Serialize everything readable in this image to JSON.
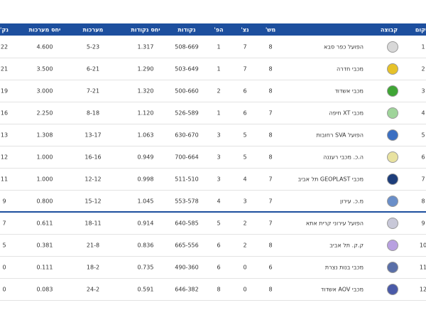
{
  "header": [
    "מיקום",
    "קבוצה",
    "מש'",
    "נצ'",
    "הפ'",
    "נקודות",
    "יחס נקודות",
    "מערכות",
    "יחס מערכות",
    "נק'"
  ],
  "rows": [
    [
      "1",
      "הפועל כפר סבא",
      "8",
      "7",
      "1",
      "508-669",
      "1.317",
      "5-23",
      "4.600",
      "22"
    ],
    [
      "2",
      "מכבי חדרה",
      "8",
      "7",
      "1",
      "503-649",
      "1.290",
      "6-21",
      "3.500",
      "21"
    ],
    [
      "3",
      "מכבי אשדוד",
      "8",
      "6",
      "2",
      "500-660",
      "1.320",
      "7-21",
      "3.000",
      "19"
    ],
    [
      "4",
      "מכבי XT חיפה",
      "7",
      "6",
      "1",
      "526-589",
      "1.120",
      "8-18",
      "2.250",
      "16"
    ],
    [
      "5",
      "הפועל SVA רחובות",
      "8",
      "5",
      "3",
      "630-670",
      "1.063",
      "13-17",
      "1.308",
      "13"
    ],
    [
      "6",
      "ה.כ. מכבי רעננה",
      "8",
      "5",
      "3",
      "700-664",
      "0.949",
      "16-16",
      "1.000",
      "12"
    ],
    [
      "7",
      "מכבי GEOPLAST תל אביב",
      "7",
      "4",
      "3",
      "511-510",
      "0.998",
      "12-12",
      "1.000",
      "11"
    ],
    [
      "8",
      "מ.כ. עירון",
      "7",
      "3",
      "4",
      "553-578",
      "1.045",
      "15-12",
      "0.800",
      "9"
    ],
    [
      "9",
      "הפועל עירוני קרית אתא",
      "7",
      "2",
      "5",
      "640-585",
      "0.914",
      "18-11",
      "0.611",
      "7"
    ],
    [
      "10",
      "ק.ק. תל אביב",
      "8",
      "2",
      "6",
      "665-556",
      "0.836",
      "21-8",
      "0.381",
      "5"
    ],
    [
      "11",
      "מכבי בנות נצרת",
      "6",
      "0",
      "6",
      "490-360",
      "0.735",
      "18-2",
      "0.111",
      "0"
    ],
    [
      "12",
      "מכבי AOV אשדוד",
      "8",
      "0",
      "8",
      "646-382",
      "0.591",
      "24-2",
      "0.083",
      "0"
    ]
  ]
}
